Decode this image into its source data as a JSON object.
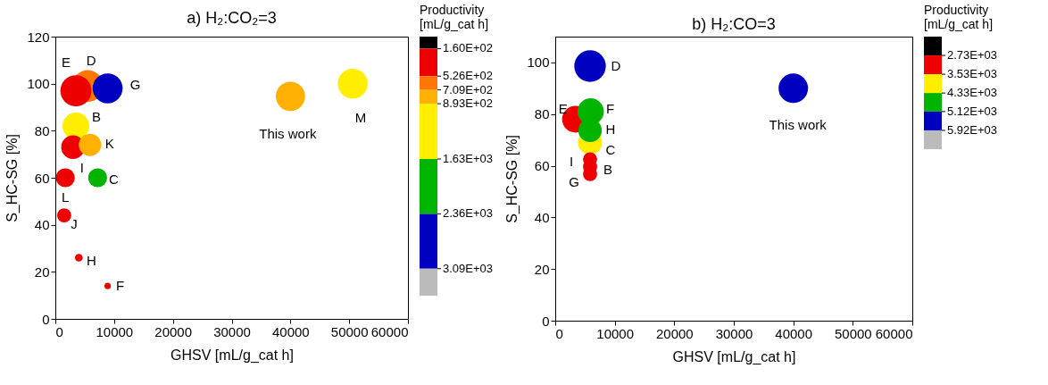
{
  "chart_data": [
    {
      "type": "bubble",
      "title": "a)  H₂:CO₂=3",
      "xlabel": "GHSV [mL/g_cat h]",
      "ylabel": "S_HC-SG [%]",
      "clabel": "Productivity [mL/g_cat h]",
      "series": [
        {
          "color": "#000000"
        },
        {
          "color": "#ee0000",
          "x": [
            3500,
            3000,
            1700,
            1500,
            4000,
            8900
          ],
          "values": [
            97,
            73,
            60,
            44,
            26,
            14
          ],
          "sizes": [
            0.97,
            0.56,
            0.36,
            0.2,
            0.06,
            0.04
          ]
        },
        {
          "color": "#ff7700",
          "x": [
            5500
          ],
          "values": [
            99
          ],
          "sizes": [
            1
          ]
        },
        {
          "color": "#ffb000",
          "x": [
            5900,
            40000
          ],
          "values": [
            74,
            94.6
          ],
          "sizes": [
            0.5,
            0.85
          ]
        },
        {
          "color": "#ffee00",
          "x": [
            3500,
            50600
          ],
          "values": [
            82,
            100
          ],
          "sizes": [
            0.72,
            0.9
          ]
        },
        {
          "color": "#00b400",
          "x": [
            7200
          ],
          "values": [
            60
          ],
          "sizes": [
            0.36
          ]
        },
        {
          "color": "#0000c0",
          "x": [
            8900
          ],
          "values": [
            98
          ],
          "sizes": [
            0.9
          ]
        },
        {
          "color": "#bbbbbb"
        }
      ],
      "clim": [
        0,
        3450
      ],
      "cticks": [
        {
          "value": 160,
          "label": "1.60E+02"
        },
        {
          "value": 526,
          "label": "5.26E+02"
        },
        {
          "value": 709,
          "label": "7.09E+02"
        },
        {
          "value": 893,
          "label": "8.93E+02"
        },
        {
          "value": 1630,
          "label": "1.63E+03"
        },
        {
          "value": 2360,
          "label": "2.36E+03"
        },
        {
          "value": 3090,
          "label": "3.09E+03"
        }
      ],
      "xlim": [
        0,
        60000
      ],
      "ylim": [
        0,
        120
      ],
      "xticks": [
        0,
        10000,
        20000,
        30000,
        40000,
        50000,
        60000
      ],
      "yticks": [
        0,
        20,
        40,
        60,
        80,
        100,
        120
      ],
      "annotations": [
        {
          "text": "D",
          "x": 5500,
          "y": 99
        },
        {
          "text": "E",
          "x": 3500,
          "y": 97
        },
        {
          "text": "G",
          "x": 8900,
          "y": 98
        },
        {
          "text": "B",
          "x": 3500,
          "y": 82
        },
        {
          "text": "I",
          "x": 3000,
          "y": 73
        },
        {
          "text": "K",
          "x": 5900,
          "y": 74
        },
        {
          "text": "L",
          "x": 1700,
          "y": 60
        },
        {
          "text": "C",
          "x": 7200,
          "y": 60
        },
        {
          "text": "J",
          "x": 1500,
          "y": 44
        },
        {
          "text": "H",
          "x": 4000,
          "y": 26
        },
        {
          "text": "F",
          "x": 8900,
          "y": 14
        },
        {
          "text": "This work",
          "x": 40000,
          "y": 94.6
        },
        {
          "text": "M",
          "x": 50600,
          "y": 100
        }
      ]
    },
    {
      "type": "bubble",
      "title": "b)  H₂:CO=3",
      "xlabel": "GHSV [mL/g_cat h]",
      "ylabel": "S_HC-SG [%]",
      "clabel": "Productivity [mL/g_cat h]",
      "series": [
        {
          "color": "#000000"
        },
        {
          "color": "#ee0000",
          "x": [
            3400,
            5850,
            5850,
            5850
          ],
          "values": [
            78,
            62.5,
            59.6,
            56.8
          ],
          "sizes": [
            0.72,
            0.2,
            0.2,
            0.2
          ]
        },
        {
          "color": "#ffee00",
          "x": [
            5850
          ],
          "values": [
            69
          ],
          "sizes": [
            0.58
          ]
        },
        {
          "color": "#00b400",
          "x": [
            5950,
            5850
          ],
          "values": [
            81,
            73.7
          ],
          "sizes": [
            0.7,
            0.55
          ]
        },
        {
          "color": "#0000c0",
          "x": [
            5850,
            40000
          ],
          "values": [
            98.6,
            90
          ],
          "sizes": [
            1,
            0.87
          ]
        },
        {
          "color": "#bbbbbb"
        }
      ],
      "clim": [
        1930,
        6720
      ],
      "cticks": [
        {
          "value": 2730,
          "label": "2.73E+03"
        },
        {
          "value": 3530,
          "label": "3.53E+03"
        },
        {
          "value": 4330,
          "label": "4.33E+03"
        },
        {
          "value": 5120,
          "label": "5.12E+03"
        },
        {
          "value": 5920,
          "label": "5.92E+03"
        }
      ],
      "xlim": [
        0,
        60000
      ],
      "ylim": [
        0,
        110
      ],
      "xticks": [
        0,
        10000,
        20000,
        30000,
        40000,
        50000,
        60000
      ],
      "yticks": [
        0,
        20,
        40,
        60,
        80,
        100
      ],
      "annotations": [
        {
          "text": "D",
          "x": 5850,
          "y": 98.6
        },
        {
          "text": "This work",
          "x": 40000,
          "y": 90
        },
        {
          "text": "E",
          "x": 3400,
          "y": 78
        },
        {
          "text": "C",
          "x": 5850,
          "y": 69
        },
        {
          "text": "F",
          "x": 5950,
          "y": 81
        },
        {
          "text": "H",
          "x": 5850,
          "y": 73.7
        },
        {
          "text": "I",
          "x": 5850,
          "y": 62.5
        },
        {
          "text": "B",
          "x": 5850,
          "y": 59.6
        },
        {
          "text": "G",
          "x": 5850,
          "y": 56.8
        }
      ]
    }
  ]
}
